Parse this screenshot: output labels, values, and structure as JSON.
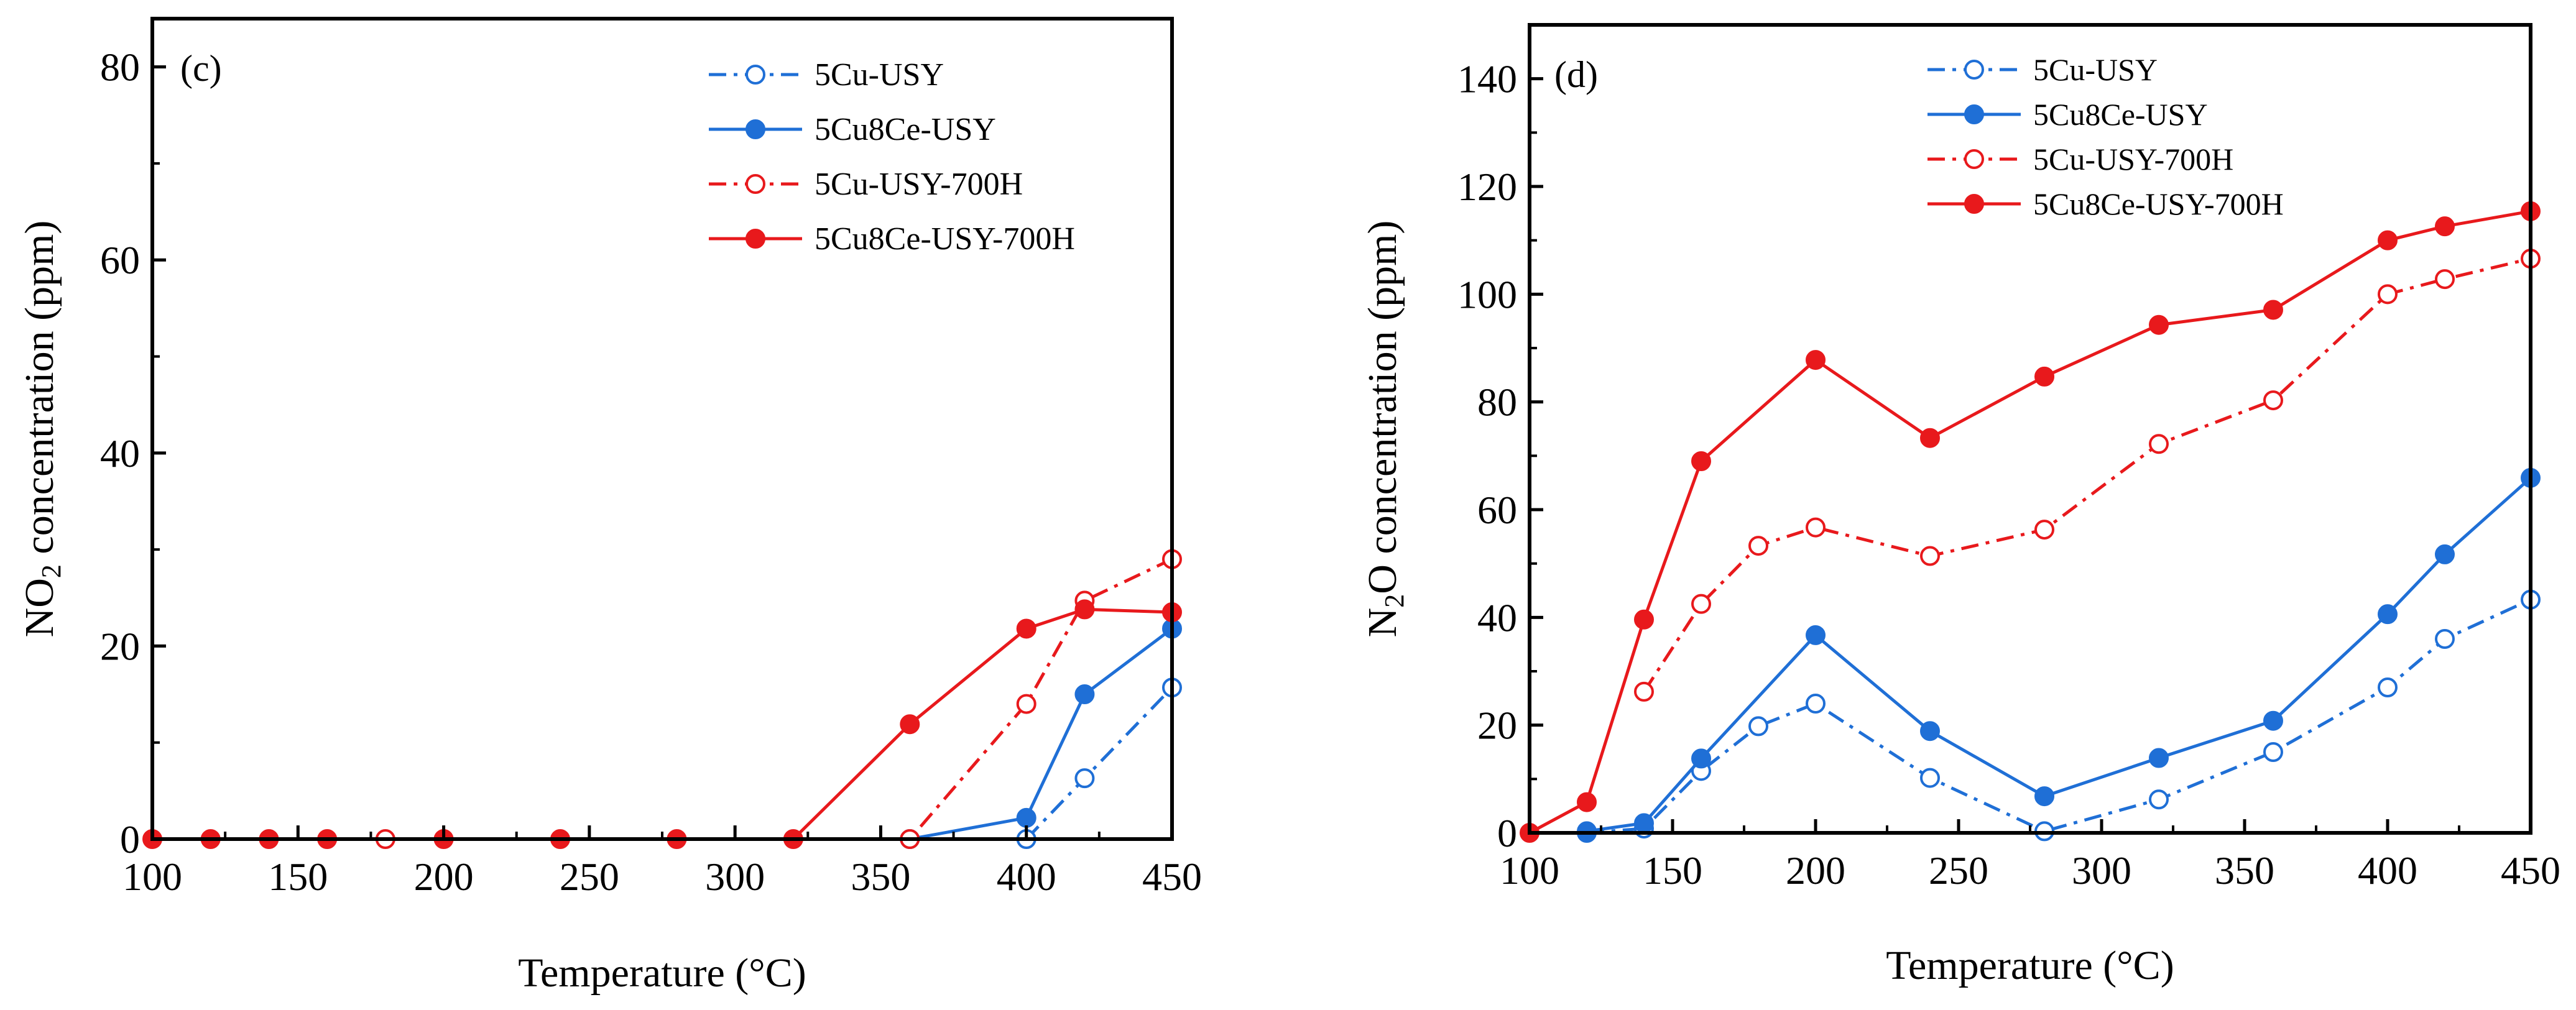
{
  "chart_data": [
    {
      "panel_label": "(c)",
      "type": "line",
      "xlabel": "Temperature (°C)",
      "ylabel_main": "NO",
      "ylabel_sub": "2",
      "ylabel_rest": " concentration (ppm)",
      "xlim": [
        100,
        450
      ],
      "ylim": [
        0,
        85
      ],
      "xticks": [
        100,
        150,
        200,
        250,
        300,
        350,
        400,
        450
      ],
      "yticks": [
        0,
        20,
        40,
        60,
        80
      ],
      "series": [
        {
          "name": "5Cu-USY",
          "color": "#1f6fd6",
          "marker": "open",
          "dash": "dashdot",
          "x": [
            400,
            420,
            450
          ],
          "y": [
            0,
            6.3,
            15.7
          ]
        },
        {
          "name": "5Cu8Ce-USY",
          "color": "#1f6fd6",
          "marker": "filled",
          "dash": "solid",
          "x": [
            360,
            400,
            420,
            450
          ],
          "y": [
            0,
            2.2,
            15.0,
            21.8
          ]
        },
        {
          "name": "5Cu-USY-700H",
          "color": "#e8191c",
          "marker": "open",
          "dash": "dashdot",
          "x": [
            180,
            360,
            400,
            420,
            450
          ],
          "y": [
            0,
            0,
            14.0,
            24.7,
            29.0
          ]
        },
        {
          "name": "5Cu8Ce-USY-700H",
          "color": "#e8191c",
          "marker": "filled",
          "dash": "solid",
          "x": [
            100,
            120,
            140,
            160,
            200,
            240,
            280,
            320,
            360,
            400,
            420,
            450
          ],
          "y": [
            0,
            0,
            0,
            0,
            0,
            0,
            0,
            0,
            11.9,
            21.8,
            23.8,
            23.5
          ]
        }
      ]
    },
    {
      "panel_label": "(d)",
      "type": "line",
      "xlabel": "Temperature (°C)",
      "ylabel_main": "N",
      "ylabel_sub": "2",
      "ylabel_rest": "O concentration (ppm)",
      "xlim": [
        100,
        450
      ],
      "ylim": [
        0,
        150
      ],
      "xticks": [
        100,
        150,
        200,
        250,
        300,
        350,
        400,
        450
      ],
      "yticks": [
        0,
        20,
        40,
        60,
        80,
        100,
        120,
        140
      ],
      "series": [
        {
          "name": "5Cu-USY",
          "color": "#1f6fd6",
          "marker": "open",
          "dash": "dashdot",
          "x": [
            120,
            140,
            160,
            180,
            200,
            240,
            280,
            320,
            360,
            400,
            420,
            450
          ],
          "y": [
            0,
            0.8,
            11.5,
            19.8,
            24.0,
            10.2,
            0.3,
            6.2,
            15.0,
            27.0,
            36.0,
            43.3
          ]
        },
        {
          "name": "5Cu8Ce-USY",
          "color": "#1f6fd6",
          "marker": "filled",
          "dash": "solid",
          "x": [
            120,
            140,
            160,
            200,
            240,
            280,
            320,
            360,
            400,
            420,
            450
          ],
          "y": [
            0.3,
            1.8,
            13.8,
            36.7,
            18.9,
            6.8,
            13.9,
            20.8,
            40.6,
            51.7,
            65.9
          ]
        },
        {
          "name": "5Cu-USY-700H",
          "color": "#e8191c",
          "marker": "open",
          "dash": "dashdot",
          "x": [
            140,
            160,
            180,
            200,
            240,
            280,
            320,
            360,
            400,
            420,
            450
          ],
          "y": [
            26.2,
            42.5,
            53.3,
            56.7,
            51.4,
            56.3,
            72.2,
            80.3,
            100.0,
            102.8,
            106.6
          ]
        },
        {
          "name": "5Cu8Ce-USY-700H",
          "color": "#e8191c",
          "marker": "filled",
          "dash": "solid",
          "x": [
            100,
            120,
            140,
            160,
            200,
            240,
            280,
            320,
            360,
            400,
            420,
            450
          ],
          "y": [
            0,
            5.7,
            39.6,
            69.0,
            87.8,
            73.3,
            84.7,
            94.3,
            97.1,
            110.0,
            112.6,
            115.4
          ]
        }
      ]
    }
  ]
}
